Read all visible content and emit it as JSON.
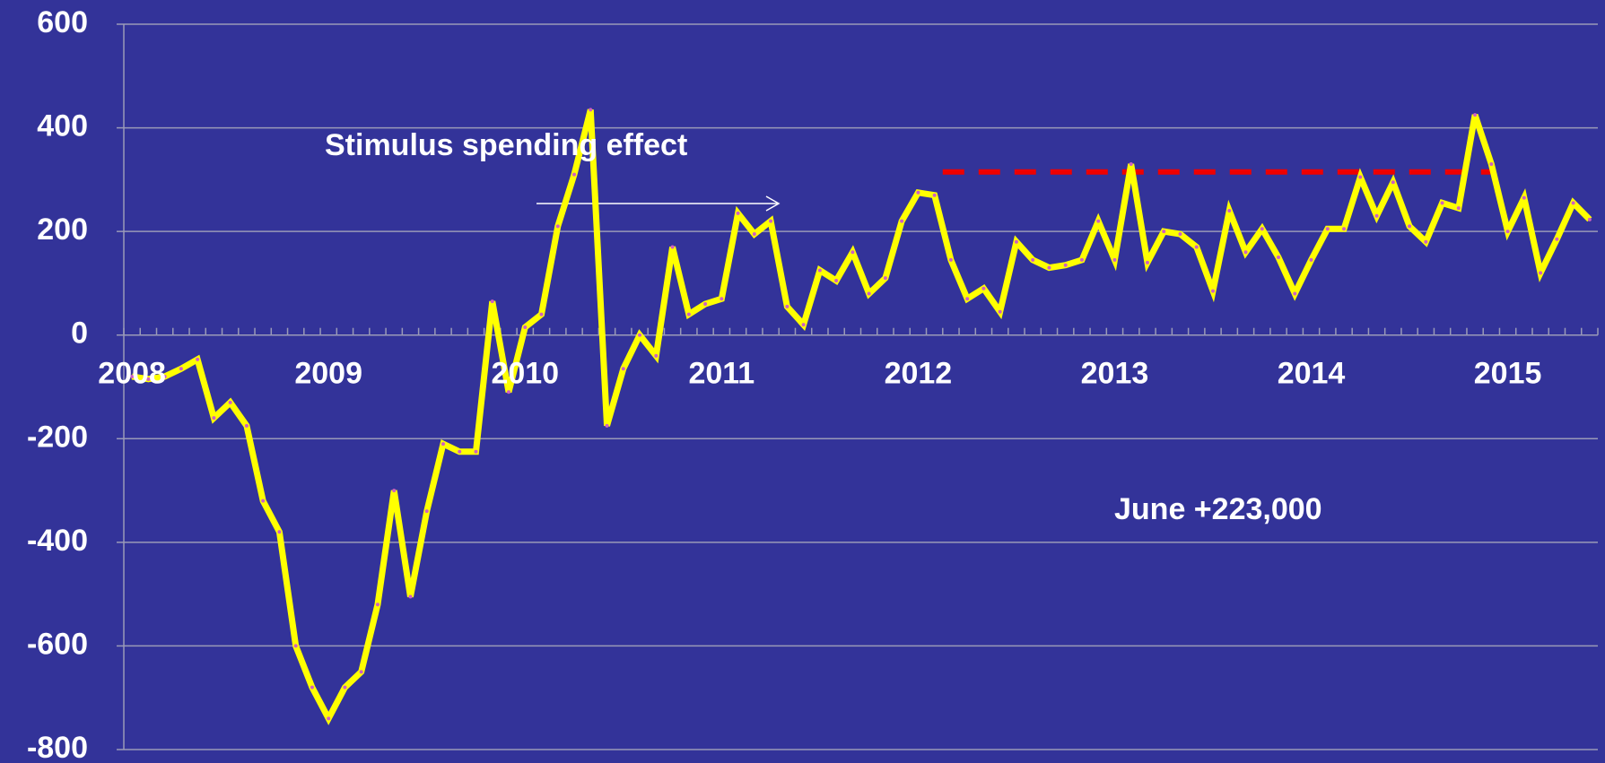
{
  "chart_data": {
    "type": "line",
    "categories": [
      "2008",
      null,
      null,
      null,
      null,
      null,
      null,
      null,
      null,
      null,
      null,
      null,
      "2009",
      null,
      null,
      null,
      null,
      null,
      null,
      null,
      null,
      null,
      null,
      null,
      "2010",
      null,
      null,
      null,
      null,
      null,
      null,
      null,
      null,
      null,
      null,
      null,
      "2011",
      null,
      null,
      null,
      null,
      null,
      null,
      null,
      null,
      null,
      null,
      null,
      "2012",
      null,
      null,
      null,
      null,
      null,
      null,
      null,
      null,
      null,
      null,
      null,
      "2013",
      null,
      null,
      null,
      null,
      null,
      null,
      null,
      null,
      null,
      null,
      null,
      "2014",
      null,
      null,
      null,
      null,
      null,
      null,
      null,
      null,
      null,
      null,
      null,
      "2015",
      null,
      null,
      null,
      null,
      null
    ],
    "series": [
      {
        "color": "#ffff00",
        "values": [
          -80,
          -85,
          -80,
          -65,
          -47,
          -160,
          -130,
          -175,
          -320,
          -380,
          -600,
          -680,
          -740,
          -680,
          -650,
          -520,
          -300,
          -505,
          -340,
          -210,
          -225,
          -225,
          65,
          -110,
          15,
          40,
          210,
          310,
          435,
          -175,
          -65,
          0,
          -40,
          170,
          40,
          60,
          70,
          235,
          195,
          220,
          55,
          20,
          125,
          105,
          160,
          80,
          110,
          220,
          275,
          270,
          145,
          70,
          90,
          45,
          180,
          145,
          130,
          135,
          145,
          220,
          145,
          330,
          140,
          200,
          195,
          170,
          85,
          240,
          160,
          205,
          150,
          80,
          145,
          205,
          205,
          305,
          230,
          295,
          210,
          180,
          255,
          245,
          425,
          330,
          200,
          265,
          120,
          185,
          255,
          223
        ]
      }
    ],
    "ylim": [
      -800,
      600
    ],
    "yticks": [
      -800,
      -600,
      -400,
      -200,
      0,
      200,
      400,
      600
    ],
    "grid": true,
    "reference_line": {
      "value": 315,
      "color": "#ee0000"
    },
    "annotations": [
      "Stimulus spending effect",
      "June +223,000"
    ]
  }
}
